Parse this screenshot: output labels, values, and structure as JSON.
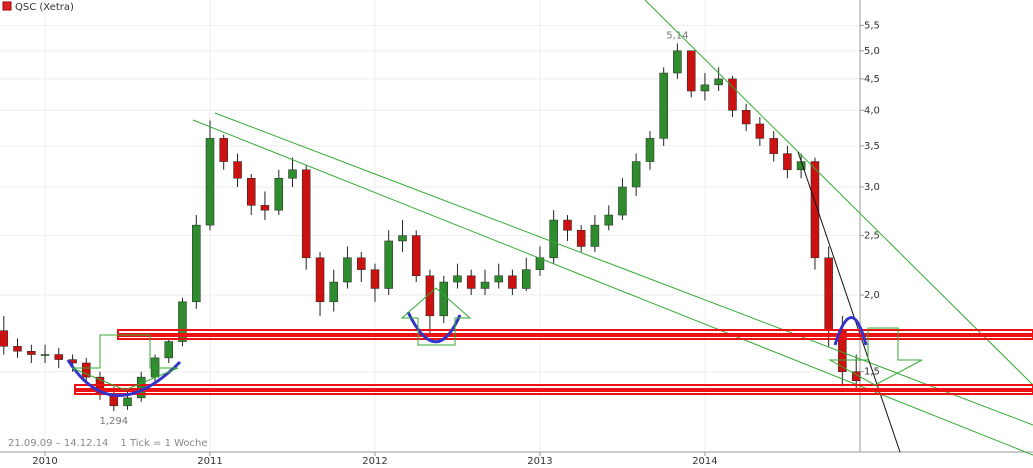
{
  "chart_data": {
    "type": "candlestick",
    "legend": "QSC (Xetra)",
    "log_scale": true,
    "grid": true,
    "footer": [
      "21.09.09 – 14.12.14",
      "1 Tick = 1 Woche"
    ],
    "annotations": [
      {
        "text": "5,14",
        "x": 2013.833,
        "y": 5.14
      },
      {
        "text": "1,294",
        "x": 2010.417,
        "y": 1.294
      }
    ],
    "up_color": "#2e8b2e",
    "down_color": "#cc1111",
    "x": [
      2009.75,
      2009.833,
      2009.917,
      2010,
      2010.083,
      2010.167,
      2010.25,
      2010.333,
      2010.417,
      2010.5,
      2010.583,
      2010.667,
      2010.75,
      2010.833,
      2010.917,
      2011,
      2011.083,
      2011.167,
      2011.25,
      2011.333,
      2011.417,
      2011.5,
      2011.583,
      2011.667,
      2011.75,
      2011.833,
      2011.917,
      2012,
      2012.083,
      2012.167,
      2012.25,
      2012.333,
      2012.417,
      2012.5,
      2012.583,
      2012.667,
      2012.75,
      2012.833,
      2012.917,
      2013,
      2013.083,
      2013.167,
      2013.25,
      2013.333,
      2013.417,
      2013.5,
      2013.583,
      2013.667,
      2013.75,
      2013.833,
      2013.917,
      2014,
      2014.083,
      2014.167,
      2014.25,
      2014.333,
      2014.417,
      2014.5,
      2014.583,
      2014.667,
      2014.75,
      2014.833,
      2014.917
    ],
    "open": [
      1.75,
      1.65,
      1.62,
      1.6,
      1.6,
      1.57,
      1.55,
      1.47,
      1.38,
      1.32,
      1.36,
      1.47,
      1.58,
      1.68,
      1.95,
      2.6,
      3.6,
      3.3,
      3.1,
      2.8,
      2.75,
      3.1,
      3.2,
      2.3,
      1.95,
      2.1,
      2.3,
      2.2,
      2.05,
      2.45,
      2.5,
      2.15,
      1.85,
      2.1,
      2.15,
      2.05,
      2.1,
      2.15,
      2.05,
      2.2,
      2.3,
      2.65,
      2.55,
      2.4,
      2.6,
      2.7,
      3.0,
      3.3,
      3.6,
      4.6,
      5.0,
      4.3,
      4.4,
      4.5,
      4.0,
      3.8,
      3.6,
      3.4,
      3.2,
      3.3,
      2.3,
      1.75,
      1.5
    ],
    "high": [
      1.85,
      1.7,
      1.66,
      1.66,
      1.64,
      1.6,
      1.58,
      1.5,
      1.42,
      1.4,
      1.5,
      1.6,
      1.7,
      1.98,
      2.7,
      3.85,
      3.65,
      3.4,
      3.15,
      2.95,
      3.2,
      3.35,
      3.25,
      2.35,
      2.2,
      2.4,
      2.35,
      2.25,
      2.55,
      2.65,
      2.55,
      2.2,
      2.15,
      2.25,
      2.2,
      2.2,
      2.25,
      2.2,
      2.3,
      2.4,
      2.75,
      2.7,
      2.6,
      2.7,
      2.8,
      3.1,
      3.4,
      3.7,
      4.7,
      5.14,
      5.0,
      4.6,
      4.7,
      4.55,
      4.1,
      3.9,
      3.7,
      3.5,
      3.4,
      3.35,
      2.4,
      1.85,
      1.6
    ],
    "low": [
      1.6,
      1.58,
      1.55,
      1.55,
      1.52,
      1.5,
      1.43,
      1.35,
      1.294,
      1.3,
      1.34,
      1.44,
      1.55,
      1.65,
      1.9,
      2.55,
      3.2,
      3.0,
      2.7,
      2.65,
      2.7,
      3.0,
      2.2,
      1.85,
      1.88,
      2.05,
      2.1,
      1.95,
      2.0,
      2.35,
      2.1,
      1.72,
      1.8,
      2.05,
      2.0,
      2.0,
      2.05,
      2.0,
      2.03,
      2.15,
      2.25,
      2.45,
      2.35,
      2.35,
      2.55,
      2.65,
      2.9,
      3.2,
      3.5,
      4.5,
      4.2,
      4.15,
      4.3,
      3.9,
      3.7,
      3.5,
      3.3,
      3.1,
      3.1,
      2.2,
      1.65,
      1.42,
      1.4
    ],
    "close": [
      1.65,
      1.62,
      1.6,
      1.6,
      1.57,
      1.55,
      1.47,
      1.38,
      1.32,
      1.36,
      1.47,
      1.58,
      1.68,
      1.95,
      2.6,
      3.6,
      3.3,
      3.1,
      2.8,
      2.75,
      3.1,
      3.2,
      2.3,
      1.95,
      2.1,
      2.3,
      2.2,
      2.05,
      2.45,
      2.5,
      2.15,
      1.85,
      2.1,
      2.15,
      2.05,
      2.1,
      2.15,
      2.05,
      2.2,
      2.3,
      2.65,
      2.55,
      2.4,
      2.6,
      2.7,
      3.0,
      3.3,
      3.6,
      4.6,
      5.0,
      4.3,
      4.4,
      4.5,
      4.0,
      3.8,
      3.6,
      3.4,
      3.2,
      3.3,
      2.3,
      1.75,
      1.5,
      1.45
    ],
    "xlim": [
      2009.727,
      2014.94
    ],
    "xticks": [
      2010,
      2011,
      2012,
      2013,
      2014
    ],
    "ylim": [
      1.11,
      6.05
    ],
    "yticks": [
      {
        "value": 1.5,
        "label": "1,5"
      },
      {
        "value": 2.0,
        "label": "2,0"
      },
      {
        "value": 2.5,
        "label": "2,5"
      },
      {
        "value": 3.0,
        "label": "3,0"
      },
      {
        "value": 3.5,
        "label": "3,5"
      },
      {
        "value": 4.0,
        "label": "4,0"
      },
      {
        "value": 4.5,
        "label": "4,5"
      },
      {
        "value": 5.0,
        "label": "5,0"
      },
      {
        "value": 5.5,
        "label": "5,5"
      }
    ]
  }
}
